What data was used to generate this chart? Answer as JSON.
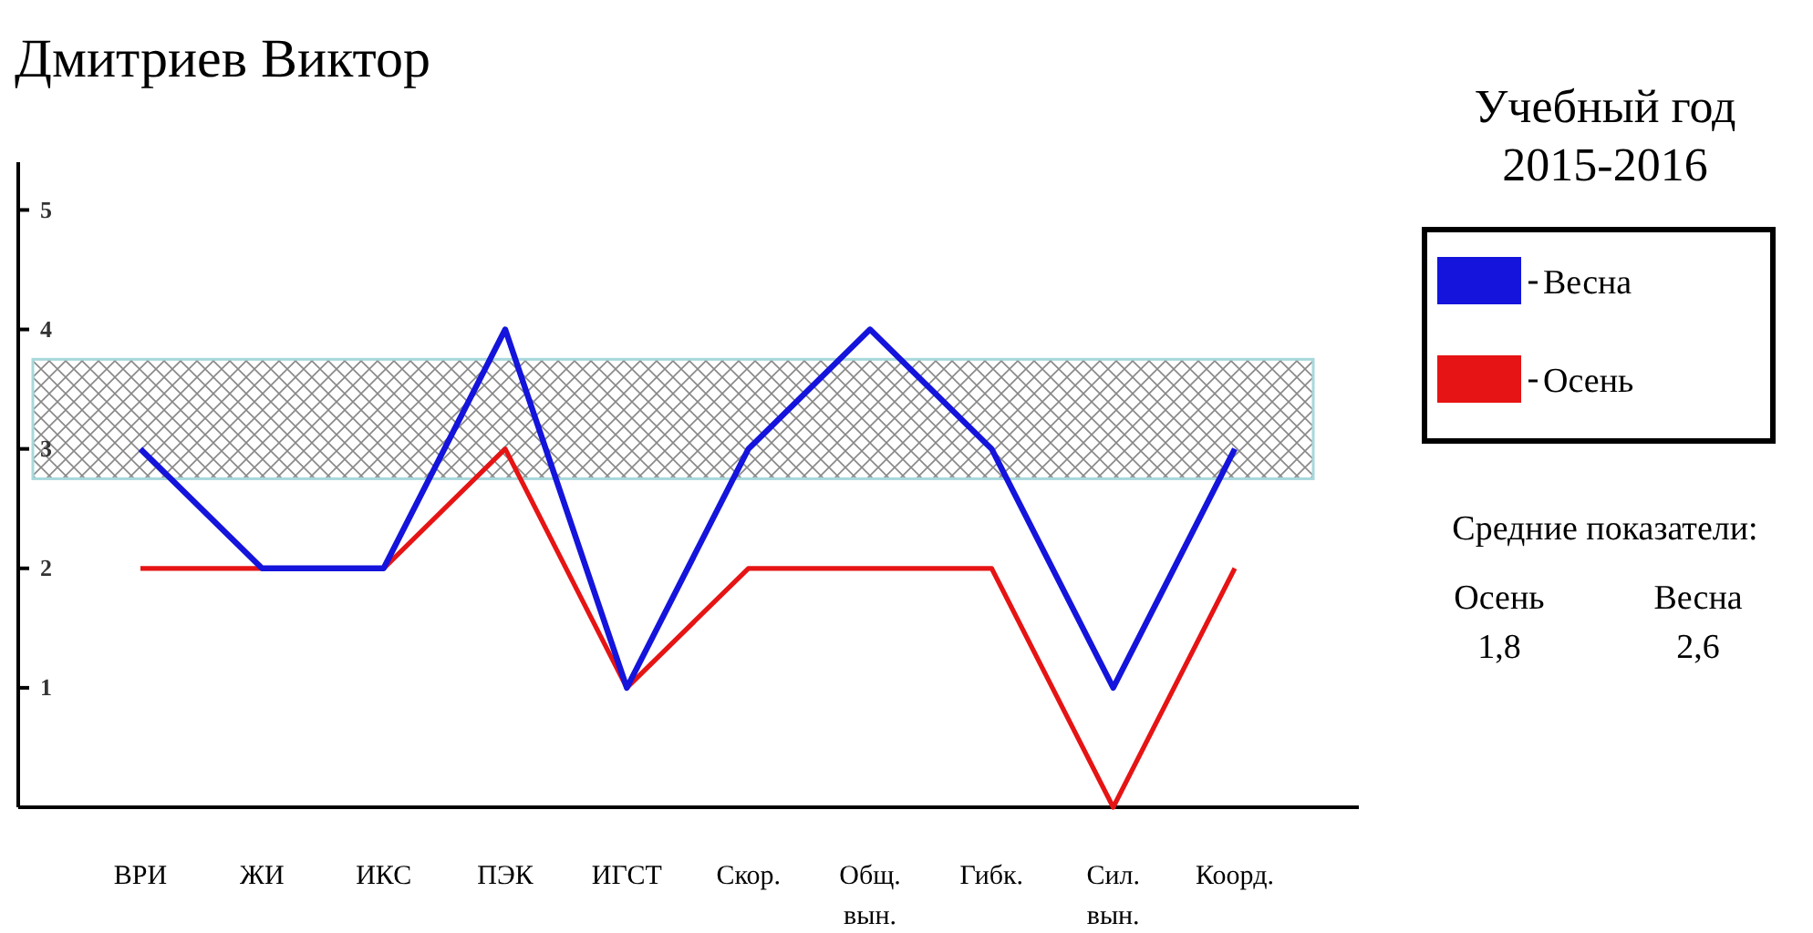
{
  "chart_data": {
    "type": "line",
    "title": "Дмитриев Виктор",
    "legend_title": "Учебный год 2015-2016",
    "categories": [
      "ВРИ",
      "ЖИ",
      "ИКС",
      "ПЭК",
      "ИГСТ",
      "Скор.",
      "Общ. вын.",
      "Гибк.",
      "Сил. вын.",
      "Коорд."
    ],
    "series": [
      {
        "name": "Весна",
        "color": "#1414dc",
        "values": [
          3,
          2,
          2,
          4,
          1,
          3,
          4,
          3,
          1,
          3
        ]
      },
      {
        "name": "Осень",
        "color": "#e61414",
        "values": [
          2,
          2,
          2,
          3,
          1,
          2,
          2,
          2,
          0,
          2
        ]
      }
    ],
    "ylim": [
      0,
      5.4
    ],
    "yticks": [
      1,
      2,
      3,
      4,
      5
    ],
    "grid": false,
    "legend": "right",
    "marker": "none",
    "line_style": "solid",
    "bands": [
      {
        "axis": "y",
        "from": 2.75,
        "to": 3.75,
        "color": "#a8d8dc"
      }
    ],
    "annotations": [
      "Средние показатели:",
      "Осень",
      "Весна",
      "1,8",
      "2,6"
    ]
  }
}
